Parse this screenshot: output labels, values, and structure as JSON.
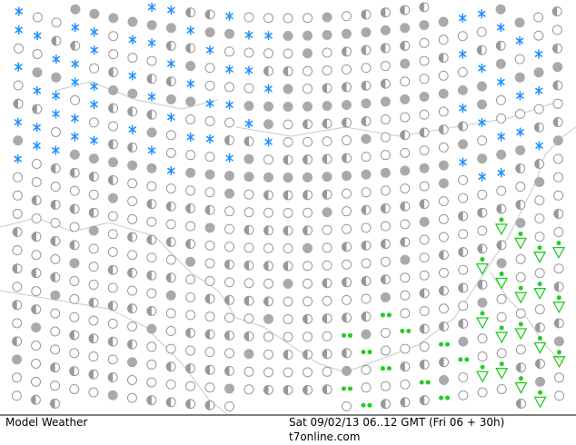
{
  "footer": {
    "label": "Model Weather",
    "time": "Sat 09/02/13 06..12 GMT (Fri 06 + 30h)",
    "site": "t7online.com"
  }
}
